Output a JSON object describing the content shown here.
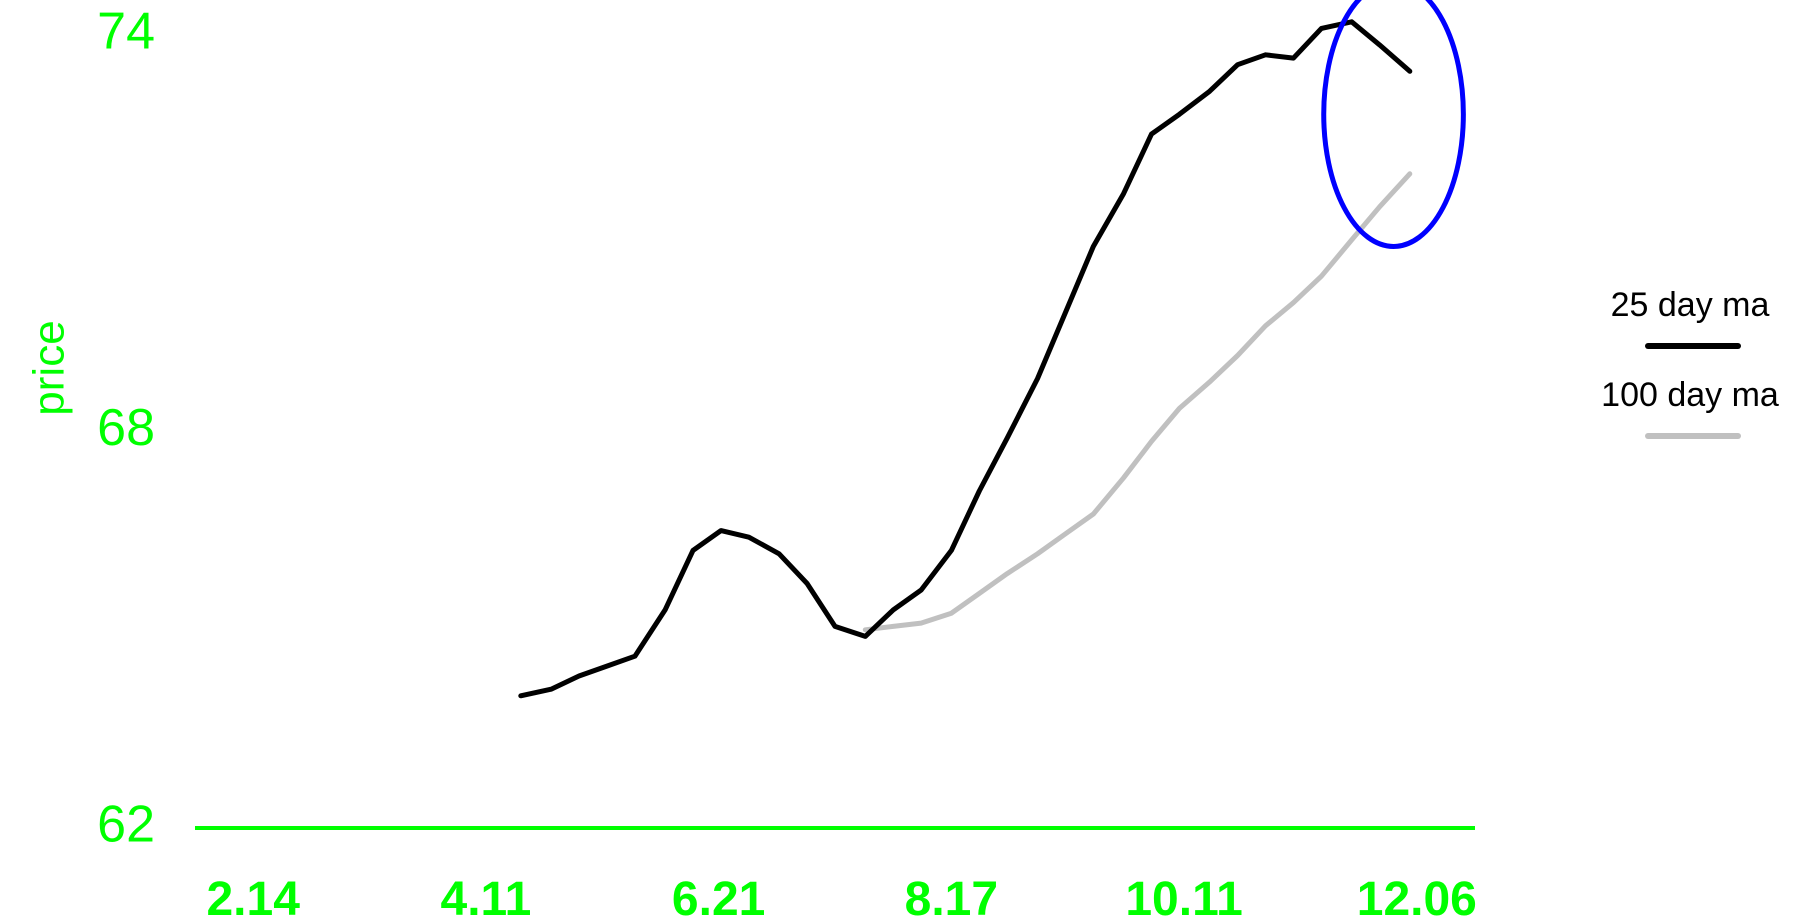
{
  "chart_data": {
    "type": "line",
    "title": "",
    "xlabel": "",
    "ylabel": "price",
    "ylim": [
      62,
      74
    ],
    "xlim": [
      0,
      55
    ],
    "x_ticks": [
      {
        "label": "2.14",
        "x": 2.5
      },
      {
        "label": "4.11",
        "x": 12.5
      },
      {
        "label": "6.21",
        "x": 22.5
      },
      {
        "label": "8.17",
        "x": 32.5
      },
      {
        "label": "10.11",
        "x": 42.5
      },
      {
        "label": "12.06",
        "x": 52.5
      }
    ],
    "y_ticks": [
      74,
      68,
      62
    ],
    "series": [
      {
        "name": "25 day ma",
        "color": "#000000",
        "x": [
          14,
          15.3,
          16.5,
          17.7,
          18.9,
          20.2,
          21.4,
          22.6,
          23.8,
          25.1,
          26.3,
          27.5,
          28.8,
          30.0,
          31.2,
          32.5,
          33.7,
          34.9,
          36.2,
          37.4,
          38.6,
          39.9,
          41.1,
          42.3,
          43.6,
          44.8,
          46.0,
          47.2,
          48.4,
          49.7,
          50.9,
          52.2
        ],
        "y": [
          64.0,
          64.1,
          64.3,
          64.45,
          64.6,
          65.3,
          66.2,
          66.5,
          66.4,
          66.15,
          65.7,
          65.05,
          64.9,
          65.3,
          65.6,
          66.2,
          67.1,
          67.9,
          68.8,
          69.8,
          70.8,
          71.6,
          72.5,
          72.8,
          73.15,
          73.55,
          73.7,
          73.65,
          74.1,
          74.2,
          73.85,
          73.45
        ]
      },
      {
        "name": "100 day ma",
        "color": "#c0c0c0",
        "x": [
          28.8,
          30.0,
          31.2,
          32.5,
          33.7,
          34.9,
          36.2,
          37.4,
          38.6,
          39.9,
          41.1,
          42.3,
          43.6,
          44.8,
          46.0,
          47.2,
          48.4,
          49.7,
          50.9,
          52.2
        ],
        "y": [
          65.0,
          65.05,
          65.1,
          65.25,
          65.55,
          65.85,
          66.15,
          66.45,
          66.75,
          67.3,
          67.85,
          68.35,
          68.75,
          69.15,
          69.6,
          69.95,
          70.35,
          70.9,
          71.4,
          71.9
        ]
      }
    ],
    "legend": {
      "position": "right",
      "entries": [
        {
          "label": "25 day ma",
          "color": "#000000"
        },
        {
          "label": "100 day ma",
          "color": "#c0c0c0"
        }
      ]
    },
    "annotation": {
      "shape": "ellipse",
      "color": "#0000ff",
      "center_x": 51.5,
      "center_y": 72.8,
      "radius_x": 3.0,
      "radius_y": 2.0
    },
    "axis_color": "#00ff00",
    "grid": false
  }
}
